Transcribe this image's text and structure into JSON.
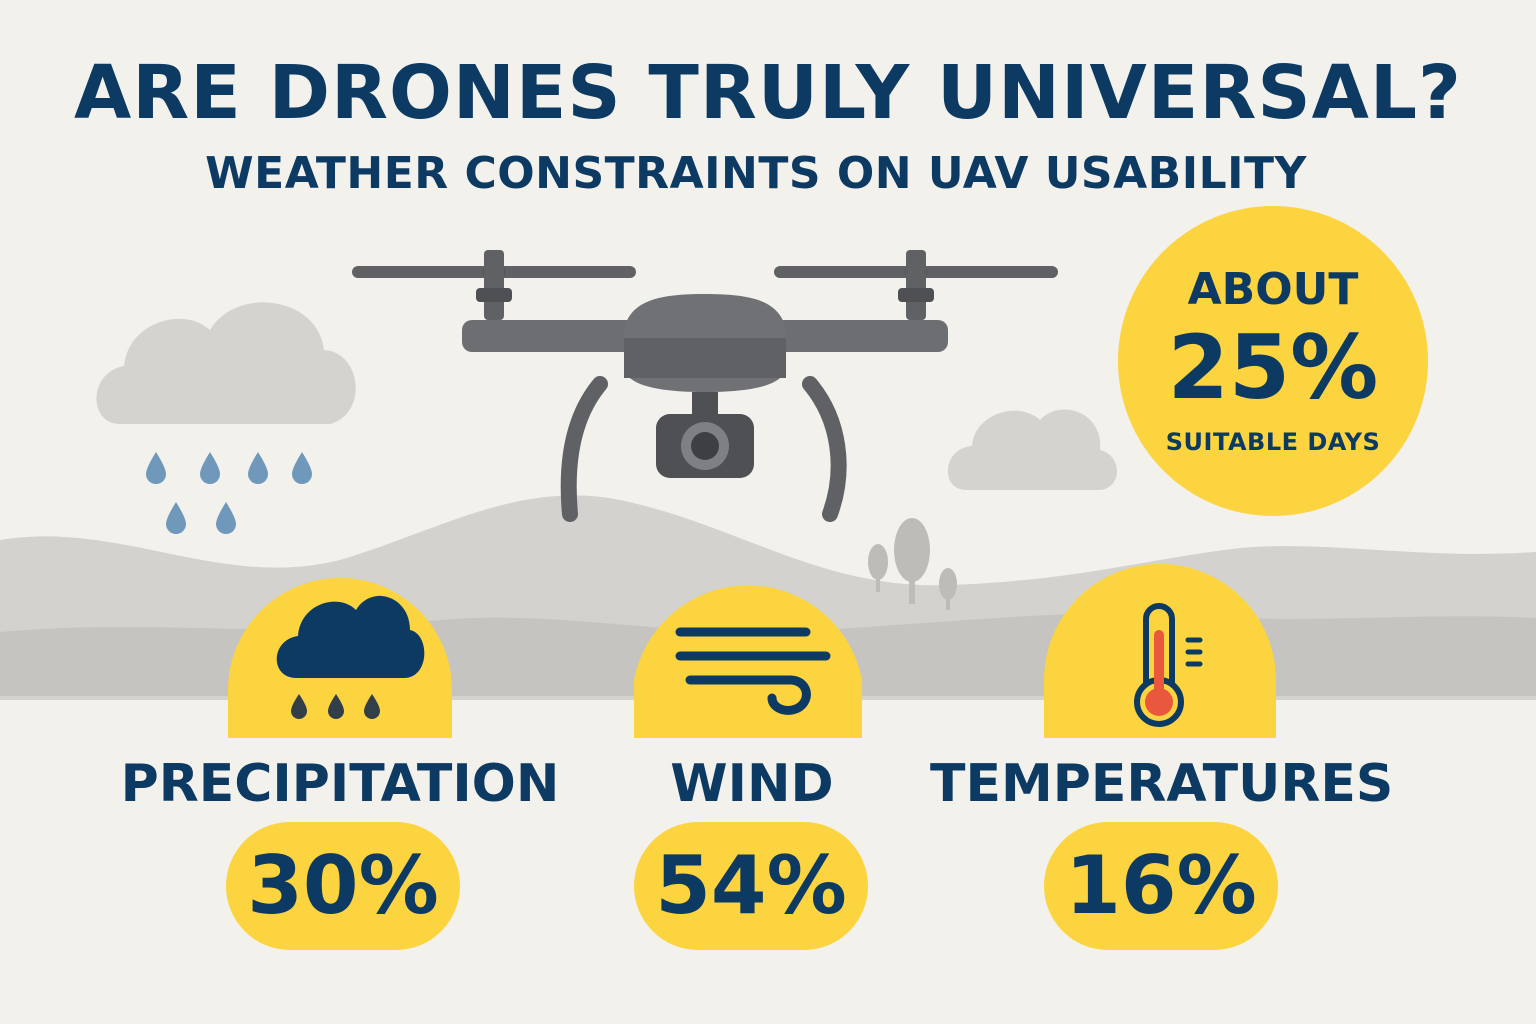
{
  "header": {
    "title": "ARE DRONES TRULY UNIVERSAL?",
    "subtitle": "WEATHER CONSTRAINTS ON UAV USABILITY"
  },
  "summary_badge": {
    "prefix": "ABOUT",
    "value": "25%",
    "caption": "SUITABLE DAYS"
  },
  "factors": [
    {
      "label": "PRECIPITATION",
      "value": "30%",
      "icon": "rain-cloud-icon"
    },
    {
      "label": "WIND",
      "value": "54%",
      "icon": "wind-icon"
    },
    {
      "label": "TEMPERATURES",
      "value": "16%",
      "icon": "thermometer-icon"
    }
  ],
  "colors": {
    "background": "#f3f1ec",
    "accent_yellow": "#fbd43f",
    "navy": "#0d3a63",
    "drone_gray": "#5f6164",
    "hill_gray": "#c9c8c4",
    "rain_blue": "#6f98bb",
    "thermo_red": "#e9573d"
  }
}
